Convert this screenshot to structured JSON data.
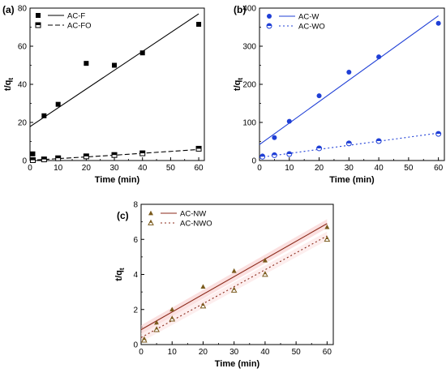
{
  "chart_data": [
    {
      "panel_label": "(a)",
      "type": "scatter",
      "xlabel": "Time (min)",
      "ylabel": "t/q",
      "ylabel_sub": "t",
      "xlim": [
        0,
        62
      ],
      "ylim": [
        0,
        80
      ],
      "xticks": [
        0,
        10,
        20,
        30,
        40,
        50,
        60
      ],
      "yticks": [
        0,
        20,
        40,
        60,
        80
      ],
      "legend": "top-left",
      "series": [
        {
          "name": "AC-F",
          "marker": "filled-square",
          "color": "#000000",
          "line_style": "solid",
          "x": [
            1,
            5,
            10,
            20,
            30,
            40,
            60
          ],
          "y": [
            3.5,
            23.5,
            29.5,
            51,
            50,
            56.5,
            71.5
          ],
          "fit": [
            [
              0,
              17.8
            ],
            [
              60,
              77
            ]
          ]
        },
        {
          "name": "AC-FO",
          "marker": "half-filled-square",
          "color": "#000000",
          "line_style": "dashed",
          "x": [
            1,
            5,
            10,
            20,
            30,
            40,
            60
          ],
          "y": [
            0.2,
            0.6,
            1.2,
            2.2,
            2.9,
            3.8,
            6.2
          ],
          "fit": [
            [
              0,
              0.1
            ],
            [
              30,
              2.8
            ],
            [
              60,
              5.8
            ]
          ]
        }
      ]
    },
    {
      "panel_label": "(b)",
      "type": "scatter",
      "xlabel": "Time (min)",
      "ylabel": "t/q",
      "ylabel_sub": "t",
      "xlim": [
        0,
        62
      ],
      "ylim": [
        0,
        400
      ],
      "xticks": [
        0,
        10,
        20,
        30,
        40,
        50,
        60
      ],
      "yticks": [
        0,
        100,
        200,
        300,
        400
      ],
      "legend": "top-left",
      "series": [
        {
          "name": "AC-W",
          "marker": "filled-circle",
          "color": "#1f3fd6",
          "line_style": "solid",
          "x": [
            1,
            5,
            10,
            20,
            30,
            40,
            60
          ],
          "y": [
            12,
            60,
            103,
            170,
            232,
            272,
            360
          ],
          "fit": [
            [
              0,
              42
            ],
            [
              60,
              380
            ]
          ]
        },
        {
          "name": "AC-WO",
          "marker": "half-filled-circle",
          "color": "#1f3fd6",
          "line_style": "dotted",
          "x": [
            1,
            5,
            10,
            20,
            30,
            40,
            60
          ],
          "y": [
            10,
            14,
            17,
            32,
            45,
            51,
            70
          ],
          "fit": [
            [
              0,
              8
            ],
            [
              60,
              72
            ]
          ]
        }
      ]
    },
    {
      "panel_label": "(c)",
      "type": "scatter",
      "xlabel": "Time (min)",
      "ylabel": "t/q",
      "ylabel_sub": "t",
      "xlim": [
        0,
        62
      ],
      "ylim": [
        0,
        8
      ],
      "xticks": [
        0,
        10,
        20,
        30,
        40,
        50,
        60
      ],
      "yticks": [
        0,
        2,
        4,
        6,
        8
      ],
      "legend": "top-left",
      "series": [
        {
          "name": "AC-NW",
          "marker": "filled-triangle",
          "color": "#7a5a1c",
          "line_color": "#8b2a1a",
          "line_style": "solid",
          "x": [
            1,
            5,
            10,
            20,
            30,
            40,
            60
          ],
          "y": [
            0.35,
            1.25,
            2.0,
            3.3,
            4.2,
            4.8,
            6.7
          ],
          "fit": [
            [
              0,
              0.85
            ],
            [
              60,
              6.9
            ]
          ]
        },
        {
          "name": "AC-NWO",
          "marker": "half-filled-triangle",
          "color": "#7a5a1c",
          "line_color": "#8b2a1a",
          "line_style": "dotted",
          "x": [
            1,
            5,
            10,
            20,
            30,
            40,
            60
          ],
          "y": [
            0.25,
            0.85,
            1.45,
            2.2,
            3.1,
            4.0,
            6.0
          ],
          "fit": [
            [
              0,
              0.4
            ],
            [
              60,
              6.2
            ]
          ]
        }
      ]
    }
  ]
}
